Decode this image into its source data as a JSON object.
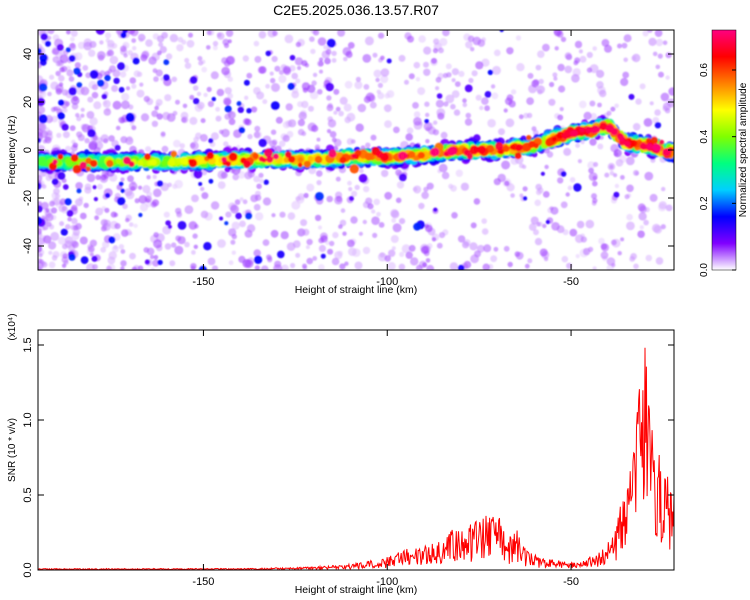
{
  "figure": {
    "title": "C2E5.2025.036.13.57.R07"
  },
  "chart_data": [
    {
      "type": "heatmap",
      "title": "C2E5.2025.036.13.57.R07",
      "xlabel": "Height of straight line (km)",
      "ylabel": "Frequency (Hz)",
      "xlim": [
        -195,
        -22
      ],
      "ylim": [
        -50,
        50
      ],
      "xticks": [
        -150,
        -100,
        -50
      ],
      "xtick_labels": [
        "-150",
        "-100",
        "-50"
      ],
      "yticks": [
        40,
        20,
        0,
        -20,
        -40
      ],
      "ytick_labels": [
        "40",
        "20",
        "0",
        "-20",
        "-40"
      ],
      "ridge": {
        "x": [
          -195,
          -180,
          -160,
          -140,
          -130,
          -120,
          -110,
          -100,
          -90,
          -80,
          -70,
          -60,
          -50,
          -45,
          -40,
          -35,
          -30,
          -25,
          -22
        ],
        "frequency": [
          -5,
          -5,
          -5,
          -4,
          -4,
          -4,
          -3,
          -3,
          -2,
          0,
          0,
          2,
          7,
          8,
          10,
          3,
          2,
          0,
          -1
        ]
      },
      "colorbar": {
        "label": "Normalized spectral amplitude",
        "range": [
          0,
          0.72
        ],
        "ticks": [
          0.0,
          0.2,
          0.4,
          0.6
        ],
        "tick_labels": [
          "0.0",
          "0.2",
          "0.4",
          "0.6"
        ],
        "colors": [
          "#ffffff",
          "#8000ff",
          "#0000ff",
          "#00d0ff",
          "#00ff80",
          "#80ff00",
          "#ffff00",
          "#ff8000",
          "#ff0000",
          "#ff0080"
        ]
      },
      "grid": false
    },
    {
      "type": "line",
      "xlabel": "Height of straight line (km)",
      "ylabel": "SNR (10 * v/v)",
      "exponent_label": "(x10⁴)",
      "xlim": [
        -195,
        -22
      ],
      "ylim": [
        0,
        1.6
      ],
      "xticks": [
        -150,
        -100,
        -50
      ],
      "xtick_labels": [
        "-150",
        "-100",
        "-50"
      ],
      "yticks": [
        0.0,
        0.5,
        1.0,
        1.5
      ],
      "ytick_labels": [
        "0.0",
        "0.5",
        "1.0",
        "1.5"
      ],
      "series": [
        {
          "color": "#ff0000",
          "x": [
            -195,
            -180,
            -160,
            -140,
            -130,
            -120,
            -110,
            -105,
            -100,
            -95,
            -90,
            -85,
            -82,
            -78,
            -75,
            -72,
            -70,
            -67,
            -65,
            -62,
            -60,
            -57,
            -55,
            -52,
            -50,
            -47,
            -45,
            -42,
            -40,
            -38,
            -36,
            -34,
            -32,
            -31,
            -30,
            -29,
            -28,
            -27,
            -26,
            -25,
            -24,
            -23,
            -22
          ],
          "y": [
            0.01,
            0.01,
            0.01,
            0.01,
            0.015,
            0.02,
            0.04,
            0.06,
            0.09,
            0.14,
            0.16,
            0.22,
            0.28,
            0.3,
            0.34,
            0.3,
            0.36,
            0.22,
            0.28,
            0.14,
            0.1,
            0.09,
            0.07,
            0.06,
            0.05,
            0.06,
            0.09,
            0.12,
            0.18,
            0.28,
            0.42,
            0.62,
            0.95,
            1.2,
            1.55,
            1.2,
            0.9,
            0.7,
            0.8,
            0.55,
            0.7,
            0.5,
            0.6
          ]
        }
      ],
      "grid": false
    }
  ]
}
